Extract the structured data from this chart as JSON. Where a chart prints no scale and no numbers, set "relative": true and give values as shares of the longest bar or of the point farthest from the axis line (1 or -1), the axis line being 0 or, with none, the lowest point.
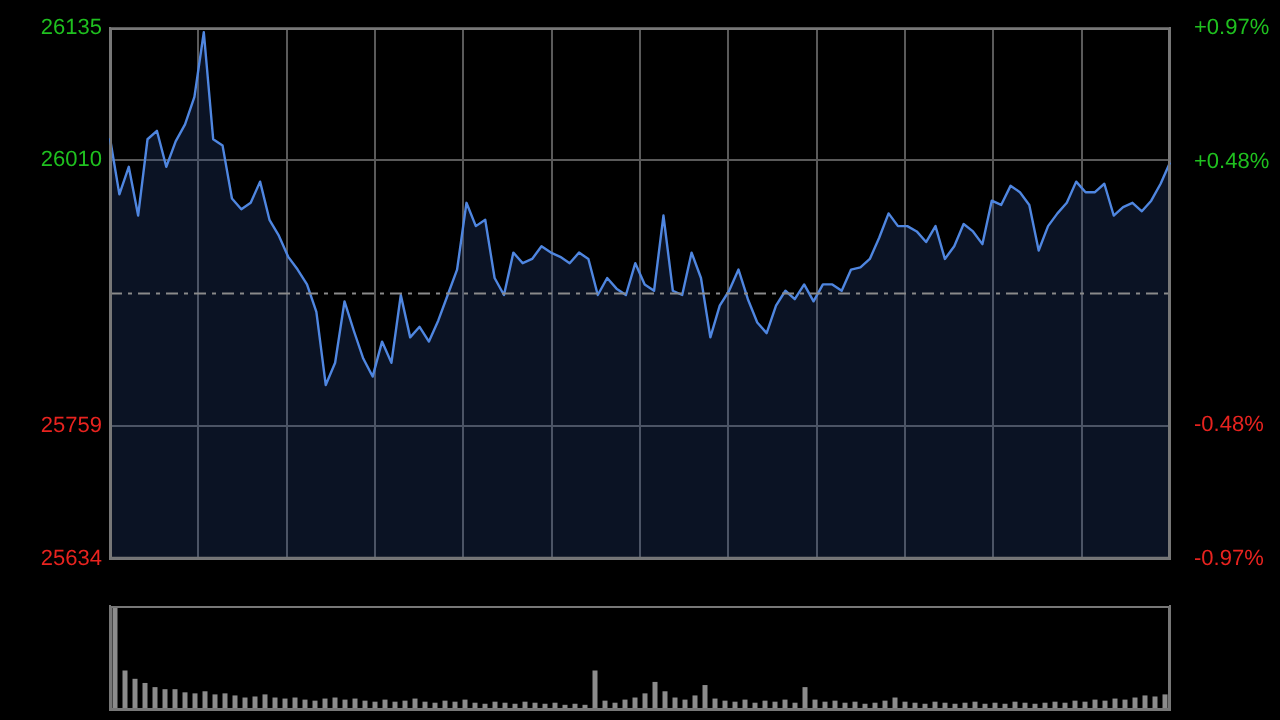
{
  "chart_data": [
    {
      "type": "area",
      "categories": [
        null,
        null,
        null,
        null,
        null,
        null,
        null,
        null,
        null,
        null,
        null,
        null,
        null,
        null,
        null,
        null,
        null,
        null,
        null,
        null,
        null,
        null,
        null,
        null,
        null,
        null,
        null,
        null,
        null,
        null,
        null,
        null,
        null,
        null,
        null,
        null,
        null,
        null,
        null,
        null,
        null,
        null,
        null,
        null,
        null,
        null,
        null,
        null,
        null,
        null,
        null,
        null,
        null,
        null,
        null,
        null,
        null,
        null,
        null,
        null,
        null,
        null,
        null,
        null,
        null,
        null,
        null,
        null,
        null,
        null,
        null,
        null,
        null,
        null,
        null,
        null,
        null,
        null,
        null,
        null,
        null,
        null,
        null,
        null,
        null,
        null,
        null,
        null,
        null,
        null,
        null,
        null,
        null,
        null,
        null,
        null,
        null,
        null,
        null,
        null,
        null,
        null,
        null,
        null,
        null,
        null,
        null,
        null,
        null,
        null,
        null,
        null,
        null,
        null
      ],
      "series": [
        {
          "color": "#4f86e0",
          "values": [
            26031,
            25978,
            26004,
            25958,
            26030,
            26038,
            26004,
            26028,
            26044,
            26070,
            26131,
            26030,
            26024,
            25974,
            25964,
            25970,
            25990,
            25954,
            25939,
            25919,
            25907,
            25893,
            25867,
            25798,
            25819,
            25877,
            25849,
            25823,
            25806,
            25839,
            25819,
            25883,
            25843,
            25853,
            25839,
            25859,
            25883,
            25907,
            25970,
            25948,
            25954,
            25899,
            25883,
            25923,
            25913,
            25917,
            25929,
            25923,
            25919,
            25913,
            25923,
            25917,
            25883,
            25899,
            25889,
            25883,
            25913,
            25893,
            25887,
            25958,
            25887,
            25883,
            25923,
            25899,
            25843,
            25873,
            25887,
            25907,
            25879,
            25857,
            25847,
            25873,
            25887,
            25879,
            25893,
            25877,
            25893,
            25893,
            25887,
            25907,
            25909,
            25917,
            25937,
            25960,
            25948,
            25948,
            25943,
            25933,
            25948,
            25917,
            25929,
            25950,
            25943,
            25931,
            25972,
            25968,
            25986,
            25980,
            25968,
            25925,
            25948,
            25960,
            25970,
            25990,
            25980,
            25980,
            25988,
            25958,
            25966,
            25970,
            25962,
            25972,
            25988,
            26008
          ]
        }
      ],
      "ylim": [
        25634,
        26135
      ],
      "yticks": [
        26135,
        26010,
        25759,
        25634
      ],
      "y2lim": [
        -0.97,
        0.97
      ],
      "y2ticks": [
        {
          "value": 0.97,
          "label": "+0.97%"
        },
        {
          "value": 0.48,
          "label": "+0.48%"
        },
        {
          "value": -0.48,
          "label": "-0.48%"
        },
        {
          "value": -0.97,
          "label": "-0.97%"
        }
      ],
      "ref_lines": [
        {
          "axis": "y",
          "value": 25884.5,
          "color": "#8a8a8a",
          "line_style": "dashed"
        }
      ],
      "grid": true,
      "legend": false,
      "tick_labels": "y"
    },
    {
      "type": "bar",
      "relative": true,
      "categories": [
        null,
        null,
        null,
        null,
        null,
        null,
        null,
        null,
        null,
        null,
        null,
        null,
        null,
        null,
        null,
        null,
        null,
        null,
        null,
        null,
        null,
        null,
        null,
        null,
        null,
        null,
        null,
        null,
        null,
        null,
        null,
        null,
        null,
        null,
        null,
        null,
        null,
        null,
        null,
        null,
        null,
        null,
        null,
        null,
        null,
        null,
        null,
        null,
        null,
        null,
        null,
        null,
        null,
        null,
        null,
        null,
        null,
        null,
        null,
        null,
        null,
        null,
        null,
        null,
        null,
        null,
        null,
        null,
        null,
        null,
        null,
        null,
        null,
        null,
        null,
        null,
        null,
        null,
        null,
        null,
        null,
        null,
        null,
        null,
        null,
        null,
        null,
        null,
        null,
        null,
        null,
        null,
        null,
        null,
        null,
        null,
        null,
        null,
        null,
        null,
        null,
        null,
        null,
        null,
        null,
        null
      ],
      "values": [
        1,
        0.38,
        0.3,
        0.26,
        0.22,
        0.2,
        0.2,
        0.17,
        0.16,
        0.18,
        0.15,
        0.16,
        0.14,
        0.12,
        0.13,
        0.15,
        0.12,
        0.11,
        0.12,
        0.1,
        0.09,
        0.11,
        0.12,
        0.1,
        0.11,
        0.09,
        0.08,
        0.1,
        0.08,
        0.09,
        0.11,
        0.08,
        0.07,
        0.09,
        0.08,
        0.1,
        0.07,
        0.06,
        0.08,
        0.07,
        0.06,
        0.08,
        0.07,
        0.06,
        0.07,
        0.05,
        0.06,
        0.05,
        0.38,
        0.09,
        0.07,
        0.1,
        0.12,
        0.16,
        0.27,
        0.18,
        0.12,
        0.1,
        0.14,
        0.24,
        0.11,
        0.09,
        0.08,
        0.1,
        0.07,
        0.09,
        0.08,
        0.1,
        0.07,
        0.22,
        0.1,
        0.08,
        0.09,
        0.07,
        0.08,
        0.06,
        0.07,
        0.09,
        0.12,
        0.08,
        0.07,
        0.06,
        0.08,
        0.07,
        0.06,
        0.07,
        0.08,
        0.06,
        0.07,
        0.06,
        0.08,
        0.07,
        0.06,
        0.07,
        0.08,
        0.07,
        0.09,
        0.08,
        0.1,
        0.09,
        0.11,
        0.1,
        0.12,
        0.14,
        0.13,
        0.15
      ],
      "color": "#8c8c8c",
      "legend": false,
      "tick_labels": false
    }
  ]
}
